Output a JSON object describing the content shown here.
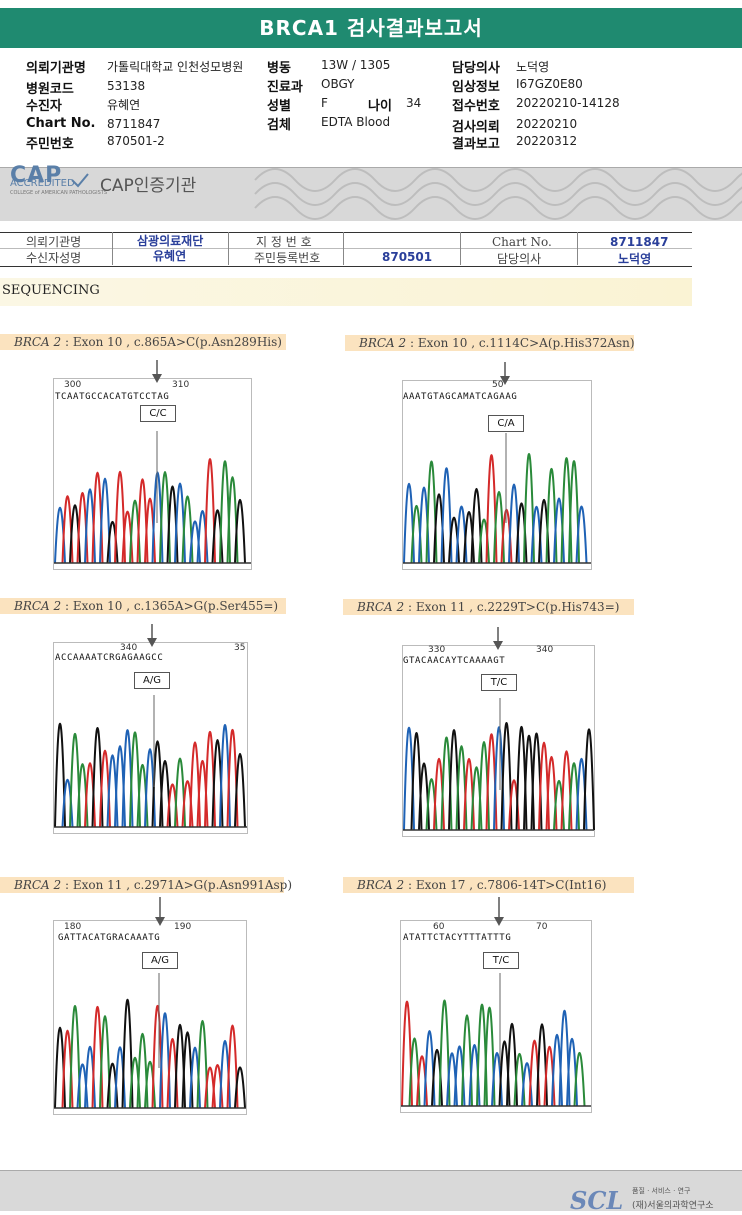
{
  "header": {
    "title": "BRCA1 검사결과보고서"
  },
  "patient_info": [
    {
      "label": "의뢰기관명",
      "value": "가톨릭대학교 인천성모병원"
    },
    {
      "label": "병원코드",
      "value": "53138"
    },
    {
      "label": "수진자",
      "value": "유혜연"
    },
    {
      "label": "Chart No.",
      "value": "8711847"
    },
    {
      "label": "주민번호",
      "value": "870501-2"
    },
    {
      "label": "병동",
      "value": "13W / 1305"
    },
    {
      "label": "진료과",
      "value": "OBGY"
    },
    {
      "label": "성별",
      "value": "F"
    },
    {
      "label": "나이",
      "value": "34"
    },
    {
      "label": "검체",
      "value": "EDTA Blood"
    },
    {
      "label": "담당의사",
      "value": "노덕영"
    },
    {
      "label": "임상정보",
      "value": "I67GZ0E80"
    },
    {
      "label": "접수번호",
      "value": "20220210-14128"
    },
    {
      "label": "검사의뢰",
      "value": "20220210"
    },
    {
      "label": "결과보고",
      "value": "20220312"
    }
  ],
  "cap": {
    "logo": "CAP",
    "accredited": "ACCREDITED",
    "college": "COLLEGE of AMERICAN PATHOLOGISTS",
    "cert_label": "CAP인증기관"
  },
  "mid_table": {
    "r1": [
      "의뢰기관명",
      "삼광의료재단",
      "지 정 번 호",
      "",
      "Chart No.",
      "8711847"
    ],
    "r2": [
      "수신자성명",
      "유혜연",
      "주민등록번호",
      "870501",
      "담당의사",
      "노덕영"
    ]
  },
  "section_title": "SEQUENCING",
  "panels": [
    {
      "gene": "BRCA 2",
      "desc": " : Exon 10 , c.865A>C(p.Asn289His)",
      "ticks": [
        "300",
        "310"
      ],
      "bases": "TCAATGCCACATGTCCTAG",
      "genotype": "C/C"
    },
    {
      "gene": "BRCA 2",
      "desc": " : Exon 10 , c.1114C>A(p.His372Asn)",
      "ticks": [
        "50"
      ],
      "bases": "AAATGTAGCAMATCAGAAG",
      "genotype": "C/A"
    },
    {
      "gene": "BRCA 2",
      "desc": " : Exon 10 , c.1365A>G(p.Ser455=)",
      "ticks": [
        "340",
        "35"
      ],
      "bases": "ACCAAAATCRGAGAAGCC",
      "genotype": "A/G"
    },
    {
      "gene": "BRCA 2",
      "desc": " : Exon 11 , c.2229T>C(p.His743=)",
      "ticks": [
        "330",
        "340"
      ],
      "bases": "GTACAACAYTCAAAAGT",
      "genotype": "T/C"
    },
    {
      "gene": "BRCA 2",
      "desc": " : Exon 11 , c.2971A>G(p.Asn991Asp)",
      "ticks": [
        "180",
        "190"
      ],
      "bases": "GATTACATGRACAAATG",
      "genotype": "A/G"
    },
    {
      "gene": "BRCA 2",
      "desc": " : Exon 17 , c.7806-14T>C(Int16)",
      "ticks": [
        "60",
        "70"
      ],
      "bases": "ATATTCTACYTTTATTTG",
      "genotype": "T/C"
    }
  ],
  "footer": {
    "logo": "SCL",
    "slogan": "품질 · 서비스 · 연구",
    "org": "(재)서울의과학연구소"
  }
}
